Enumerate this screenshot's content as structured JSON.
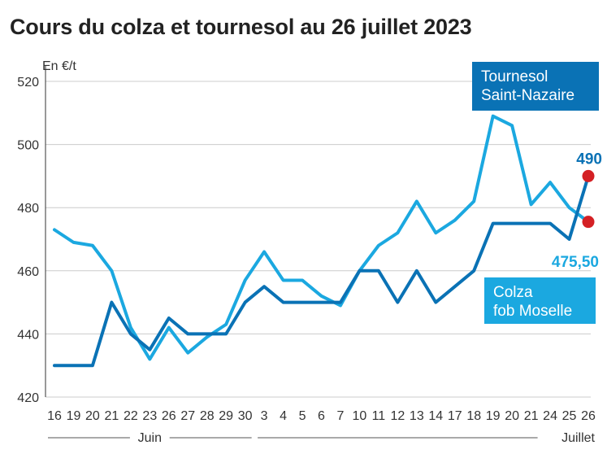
{
  "title": "Cours du colza et tournesol au 26 juillet 2023",
  "unit_label": "En €/t",
  "colors": {
    "tournesol": "#0a72b5",
    "colza": "#1ba8e0",
    "end_dot": "#d42024",
    "grid": "#cccccc",
    "text": "#333333"
  },
  "chart_data": {
    "type": "line",
    "title": "Cours du colza et tournesol au 26 juillet 2023",
    "ylabel": "En €/t",
    "ylim": [
      420,
      520
    ],
    "yticks": [
      420,
      440,
      460,
      480,
      500,
      520
    ],
    "grid": "horizontal",
    "x": [
      "16",
      "19",
      "20",
      "21",
      "22",
      "23",
      "26",
      "27",
      "28",
      "29",
      "30",
      "3",
      "4",
      "5",
      "6",
      "7",
      "10",
      "11",
      "12",
      "13",
      "14",
      "17",
      "18",
      "19",
      "20",
      "21",
      "24",
      "25",
      "26"
    ],
    "months": [
      {
        "label": "Juin",
        "from": 0,
        "to": 10
      },
      {
        "label": "Juillet",
        "from": 11,
        "to": 28
      }
    ],
    "series": [
      {
        "name": "Tournesol Saint-Nazaire",
        "color": "#0a72b5",
        "values": [
          430,
          430,
          430,
          450,
          440,
          435,
          445,
          440,
          440,
          440,
          450,
          455,
          450,
          450,
          450,
          450,
          460,
          460,
          450,
          460,
          450,
          455,
          460,
          475,
          475,
          475,
          475,
          470,
          490
        ],
        "end_label": "490"
      },
      {
        "name": "Colza fob Moselle",
        "color": "#1ba8e0",
        "values": [
          473,
          469,
          468,
          460,
          442,
          432,
          442,
          434,
          439,
          443,
          457,
          466,
          457,
          457,
          452,
          449,
          460,
          468,
          472,
          482,
          472,
          476,
          482,
          509,
          506,
          481,
          488,
          480,
          475.5
        ],
        "end_label": "475,50"
      }
    ],
    "box_labels": [
      {
        "series": 0,
        "lines": [
          "Tournesol",
          "Saint-Nazaire"
        ]
      },
      {
        "series": 1,
        "lines": [
          "Colza",
          "fob Moselle"
        ]
      }
    ]
  }
}
